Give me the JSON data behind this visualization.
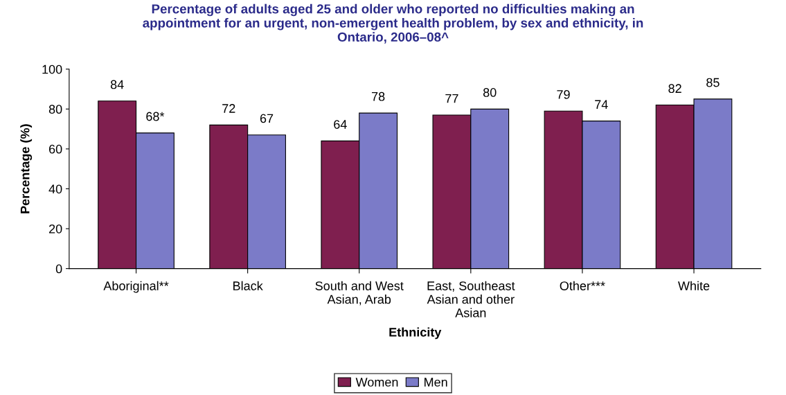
{
  "chart_data": {
    "type": "bar",
    "title": "Percentage of adults aged 25 and older who reported no difficulties making an\nappointment for an urgent, non-emergent health problem, by sex and ethnicity, in\nOntario, 2006–08^",
    "xlabel": "Ethnicity",
    "ylabel": "Percentage (%)",
    "categories": [
      "Aboriginal**",
      "Black",
      "South and West\nAsian, Arab",
      "East, Southeast\nAsian and other\nAsian",
      "Other***",
      "White"
    ],
    "series": [
      {
        "name": "Women",
        "color": "#7f1f4f",
        "values": [
          84,
          72,
          64,
          77,
          79,
          82
        ],
        "value_labels": [
          "84",
          "72",
          "64",
          "77",
          "79",
          "82"
        ]
      },
      {
        "name": "Men",
        "color": "#7b7bc8",
        "values": [
          68,
          67,
          78,
          80,
          74,
          85
        ],
        "value_labels": [
          "68*",
          "67",
          "78",
          "80",
          "74",
          "85"
        ]
      }
    ],
    "ylim": [
      0,
      100
    ],
    "yticks": [
      0,
      20,
      40,
      60,
      80,
      100
    ],
    "grid": false,
    "legend": "bottom"
  }
}
